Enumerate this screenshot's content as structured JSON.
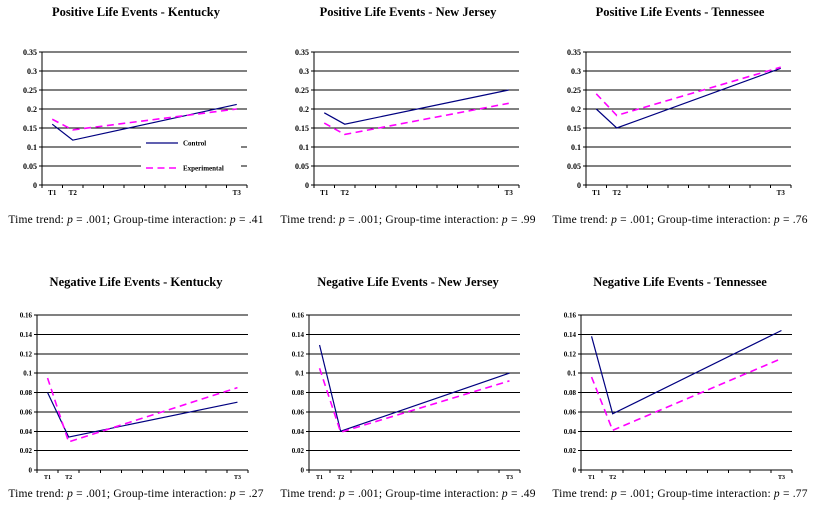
{
  "figure": {
    "background": "#ffffff"
  },
  "colors": {
    "control": "#000080",
    "experimental": "#ff00ff",
    "grid": "#000000",
    "text": "#000000"
  },
  "chart_data": [
    {
      "type": "line",
      "title": "Positive Life Events - Kentucky",
      "xtick_labels": [
        "T1",
        "T2",
        "T3"
      ],
      "x_slots": [
        0,
        1,
        9
      ],
      "x_slot_count": 10,
      "ylim": [
        0,
        0.35
      ],
      "ytick_labels": [
        "0.35",
        "0.3",
        "0.25",
        "0.2",
        "0.15",
        "0.1",
        "0.05",
        "0"
      ],
      "grid": true,
      "series": [
        {
          "name": "Control",
          "color": "#000080",
          "style": "solid",
          "values": [
            0.16,
            0.118,
            0.212
          ]
        },
        {
          "name": "Experimental",
          "color": "#ff00ff",
          "style": "dashed",
          "values": [
            0.173,
            0.145,
            0.2
          ]
        }
      ],
      "legend": {
        "position": "inside-right",
        "items": [
          {
            "label": "Control",
            "color": "#000080",
            "style": "solid"
          },
          {
            "label": "Experimental",
            "color": "#ff00ff",
            "style": "dashed"
          }
        ]
      },
      "caption_segments": [
        {
          "text": "Time trend: ",
          "italic": false
        },
        {
          "text": "p",
          "italic": true
        },
        {
          "text": " = .001; Group-time interaction: ",
          "italic": false
        },
        {
          "text": "p",
          "italic": true
        },
        {
          "text": " = .41",
          "italic": false
        }
      ]
    },
    {
      "type": "line",
      "title": "Positive Life Events - New Jersey",
      "xtick_labels": [
        "T1",
        "T2",
        "T3"
      ],
      "x_slots": [
        0,
        1,
        9
      ],
      "x_slot_count": 10,
      "ylim": [
        0,
        0.35
      ],
      "ytick_labels": [
        "0.35",
        "0.3",
        "0.25",
        "0.2",
        "0.15",
        "0.1",
        "0.05",
        "0"
      ],
      "grid": true,
      "series": [
        {
          "name": "Control",
          "color": "#000080",
          "style": "solid",
          "values": [
            0.19,
            0.16,
            0.25
          ]
        },
        {
          "name": "Experimental",
          "color": "#ff00ff",
          "style": "dashed",
          "values": [
            0.163,
            0.133,
            0.215
          ]
        }
      ],
      "caption_segments": [
        {
          "text": "Time trend: ",
          "italic": false
        },
        {
          "text": "p",
          "italic": true
        },
        {
          "text": " = .001; Group-time interaction: ",
          "italic": false
        },
        {
          "text": "p",
          "italic": true
        },
        {
          "text": " = .99",
          "italic": false
        }
      ]
    },
    {
      "type": "line",
      "title": "Positive Life Events - Tennessee",
      "xtick_labels": [
        "T1",
        "T2",
        "T3"
      ],
      "x_slots": [
        0,
        1,
        9
      ],
      "x_slot_count": 10,
      "ylim": [
        0,
        0.35
      ],
      "ytick_labels": [
        "0.35",
        "0.3",
        "0.25",
        "0.2",
        "0.15",
        "0.1",
        "0.05",
        "0"
      ],
      "grid": true,
      "series": [
        {
          "name": "Control",
          "color": "#000080",
          "style": "solid",
          "values": [
            0.2,
            0.15,
            0.307
          ]
        },
        {
          "name": "Experimental",
          "color": "#ff00ff",
          "style": "dashed",
          "values": [
            0.24,
            0.183,
            0.31
          ]
        }
      ],
      "caption_segments": [
        {
          "text": "Time trend: ",
          "italic": false
        },
        {
          "text": "p",
          "italic": true
        },
        {
          "text": " = .001; Group-time interaction: ",
          "italic": false
        },
        {
          "text": "p",
          "italic": true
        },
        {
          "text": " = .76",
          "italic": false
        }
      ]
    },
    {
      "type": "line",
      "title": "Negative Life Events - Kentucky",
      "xtick_labels": [
        "T1",
        "T2",
        "T3"
      ],
      "x_slots": [
        0,
        1,
        9
      ],
      "x_slot_count": 10,
      "ylim": [
        0,
        0.16
      ],
      "ytick_labels": [
        "0.16",
        "0.14",
        "0.12",
        "0.1",
        "0.08",
        "0.06",
        "0.04",
        "0.02",
        "0"
      ],
      "grid": true,
      "series": [
        {
          "name": "Control",
          "color": "#000080",
          "style": "solid",
          "values": [
            0.08,
            0.034,
            0.07
          ]
        },
        {
          "name": "Experimental",
          "color": "#ff00ff",
          "style": "dashed",
          "values": [
            0.095,
            0.029,
            0.085
          ]
        }
      ],
      "caption_segments": [
        {
          "text": "Time trend: ",
          "italic": false
        },
        {
          "text": "p",
          "italic": true
        },
        {
          "text": " = .001; Group-time interaction: ",
          "italic": false
        },
        {
          "text": "p",
          "italic": true
        },
        {
          "text": " = .27",
          "italic": false
        }
      ]
    },
    {
      "type": "line",
      "title": "Negative Life Events - New Jersey",
      "xtick_labels": [
        "T1",
        "T2",
        "T3"
      ],
      "x_slots": [
        0,
        1,
        9
      ],
      "x_slot_count": 10,
      "ylim": [
        0,
        0.16
      ],
      "ytick_labels": [
        "0.16",
        "0.14",
        "0.12",
        "0.1",
        "0.08",
        "0.06",
        "0.04",
        "0.02",
        "0"
      ],
      "grid": true,
      "series": [
        {
          "name": "Control",
          "color": "#000080",
          "style": "solid",
          "values": [
            0.129,
            0.04,
            0.1
          ]
        },
        {
          "name": "Experimental",
          "color": "#ff00ff",
          "style": "dashed",
          "values": [
            0.105,
            0.039,
            0.092
          ]
        }
      ],
      "caption_segments": [
        {
          "text": "Time trend: ",
          "italic": false
        },
        {
          "text": "p",
          "italic": true
        },
        {
          "text": " = .001; Group-time interaction: ",
          "italic": false
        },
        {
          "text": "p",
          "italic": true
        },
        {
          "text": " = .49",
          "italic": false
        }
      ]
    },
    {
      "type": "line",
      "title": "Negative Life Events - Tennessee",
      "xtick_labels": [
        "T1",
        "T2",
        "T3"
      ],
      "x_slots": [
        0,
        1,
        9
      ],
      "x_slot_count": 10,
      "ylim": [
        0,
        0.16
      ],
      "ytick_labels": [
        "0.16",
        "0.14",
        "0.12",
        "0.1",
        "0.08",
        "0.06",
        "0.04",
        "0.02",
        "0"
      ],
      "grid": true,
      "series": [
        {
          "name": "Control",
          "color": "#000080",
          "style": "solid",
          "values": [
            0.138,
            0.058,
            0.144
          ]
        },
        {
          "name": "Experimental",
          "color": "#ff00ff",
          "style": "dashed",
          "values": [
            0.096,
            0.041,
            0.115
          ]
        }
      ],
      "caption_segments": [
        {
          "text": "Time trend: ",
          "italic": false
        },
        {
          "text": "p",
          "italic": true
        },
        {
          "text": " = .001; Group-time interaction: ",
          "italic": false
        },
        {
          "text": "p",
          "italic": true
        },
        {
          "text": " = .77",
          "italic": false
        }
      ]
    }
  ]
}
